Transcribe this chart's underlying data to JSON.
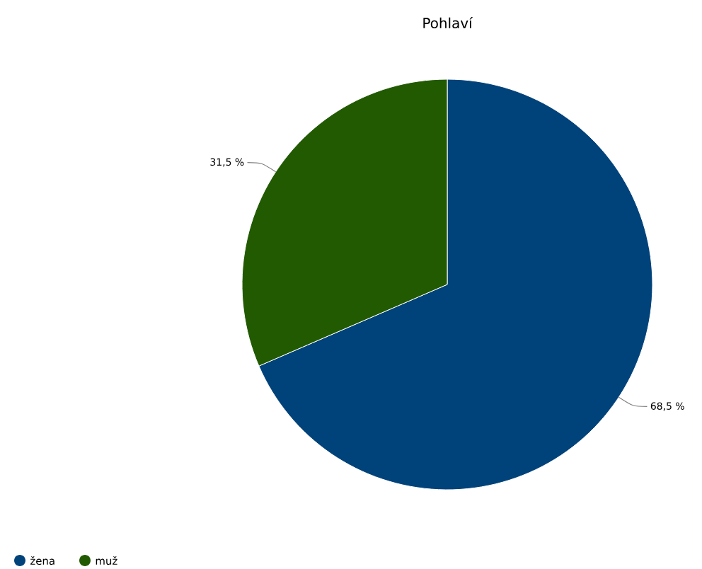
{
  "chart_data": {
    "type": "pie",
    "title": "Pohlaví",
    "categories": [
      "žena",
      "muž"
    ],
    "values": [
      68.5,
      31.5
    ],
    "colors": [
      "#00427a",
      "#215a00"
    ],
    "value_labels": [
      "68,5 %",
      "31,5 %"
    ],
    "legend": "bottom left"
  }
}
